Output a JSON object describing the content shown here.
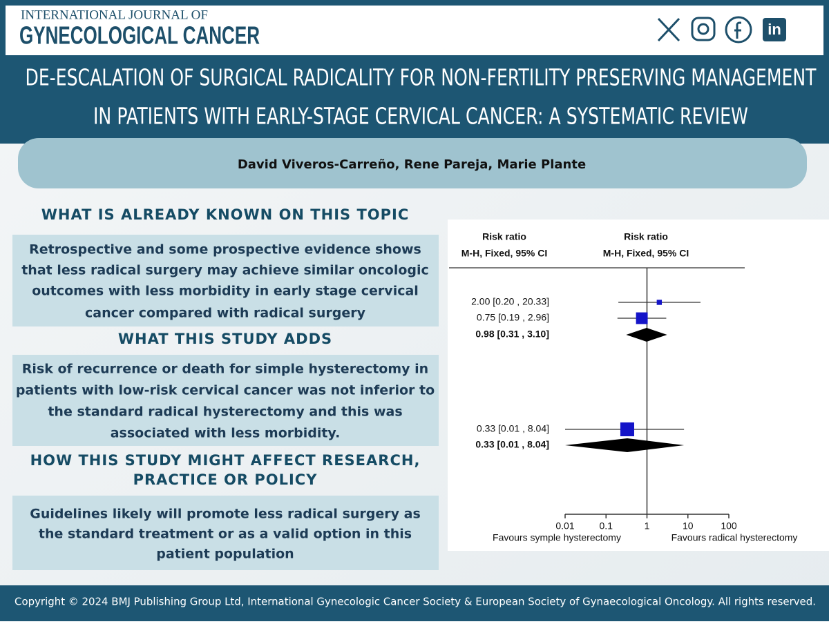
{
  "header": {
    "journal_line1": "INTERNATIONAL JOURNAL OF",
    "journal_line2": "GYNECOLOGICAL CANCER",
    "title_lines": [
      "DE-ESCALATION OF SURGICAL RADICALITY FOR NON-FERTILITY PRESERVING MANAGEMENT",
      "IN PATIENTS WITH EARLY-STAGE CERVICAL CANCER: A SYSTEMATIC REVIEW"
    ]
  },
  "authors": "David Viveros-Carreño, Rene Pareja, Marie Plante",
  "sections": [
    {
      "heading": [
        "WHAT IS ALREADY KNOWN ON THIS TOPIC"
      ],
      "body": [
        "Retrospective and some prospective evidence shows",
        "that less radical surgery may achieve similar oncologic",
        "outcomes with less morbidity in early stage  cervical",
        "cancer compared with radical surgery"
      ]
    },
    {
      "heading": [
        "WHAT THIS STUDY ADDS"
      ],
      "body": [
        "Risk of recurrence or death for simple hysterectomy in",
        "patients with low-risk cervical cancer was not inferior to",
        "the standard radical hysterectomy and this was",
        "associated with less morbidity."
      ]
    },
    {
      "heading": [
        "HOW THIS STUDY MIGHT AFFECT RESEARCH,",
        "PRACTICE OR POLICY"
      ],
      "body": [
        "Guidelines likely will promote less radical surgery as",
        "the standard treatment or as a valid option in this",
        "patient population"
      ]
    }
  ],
  "forest_plot": {
    "type": "forest",
    "log_x": true,
    "column_headers": [
      [
        "Risk ratio",
        "M-H, Fixed, 95% CI"
      ],
      [
        "Risk ratio",
        "M-H, Fixed, 95% CI"
      ]
    ],
    "rows": [
      {
        "label": "2.00 [0.20 , 20.33]",
        "estimate": 2.0,
        "low": 0.2,
        "high": 20.33,
        "marker": "square",
        "weight": 4,
        "bold": false
      },
      {
        "label": "0.75 [0.19 , 2.96]",
        "estimate": 0.75,
        "low": 0.19,
        "high": 2.96,
        "marker": "square",
        "weight": 40,
        "bold": false
      },
      {
        "label": "0.98 [0.31 , 3.10]",
        "estimate": 0.98,
        "low": 0.31,
        "high": 3.1,
        "marker": "diamond",
        "bold": true
      },
      {
        "label": "0.33 [0.01 , 8.04]",
        "estimate": 0.33,
        "low": 0.01,
        "high": 8.04,
        "marker": "square",
        "weight": 60,
        "bold": false
      },
      {
        "label": "0.33 [0.01 , 8.04]",
        "estimate": 0.33,
        "low": 0.01,
        "high": 8.04,
        "marker": "diamond",
        "bold": true
      }
    ],
    "color": "#1414c8",
    "xlim": [
      0.01,
      100
    ],
    "xticks": [
      0.01,
      0.1,
      1,
      10,
      100
    ],
    "favours_left": "Favours symple hysterectomy",
    "favours_right": "Favours radical hysterectomy"
  },
  "footer": "Copyright © 2024 BMJ Publishing Group Ltd, International Gynecologic Cancer Society & European Society of Gynaecological Oncology. All rights reserved."
}
